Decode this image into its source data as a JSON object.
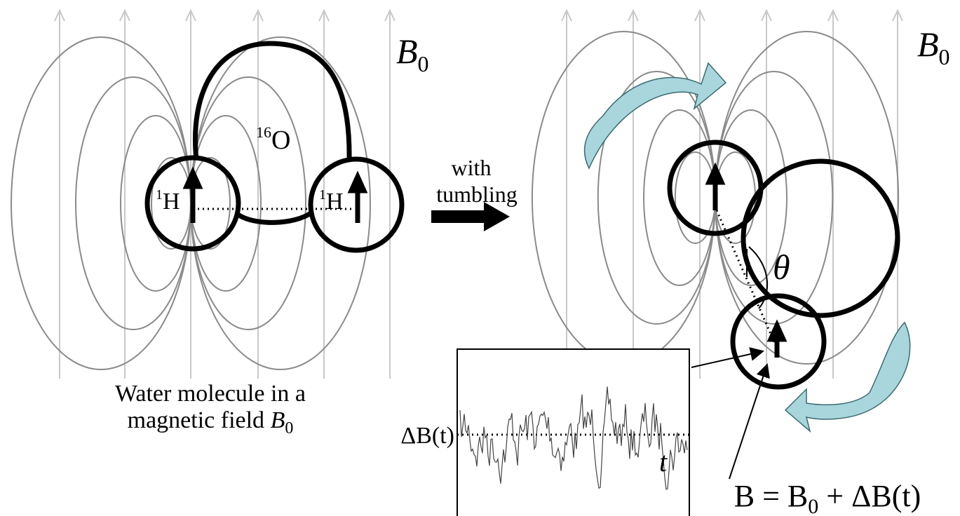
{
  "left_panel": {
    "field_label": {
      "symbol": "B",
      "subscript": "0"
    },
    "oxygen": {
      "mass": "16",
      "element": "O"
    },
    "hydrogen_1": {
      "mass": "1",
      "element": "H"
    },
    "hydrogen_2": {
      "mass": "1",
      "element": "H"
    },
    "caption": {
      "line1": "Water molecule in a",
      "line2": "magnetic field ",
      "line2_symbol": "B",
      "line2_subscript": "0"
    }
  },
  "arrow_label": {
    "line1": "with",
    "line2": "tumbling"
  },
  "right_panel": {
    "field_label": {
      "symbol": "B",
      "subscript": "0"
    },
    "angle": "θ",
    "equation": {
      "left": "B = B",
      "subscript": "0",
      "right": " + ΔB(t)"
    }
  },
  "inset": {
    "y_label": "ΔB(t)",
    "x_label": "t"
  }
}
